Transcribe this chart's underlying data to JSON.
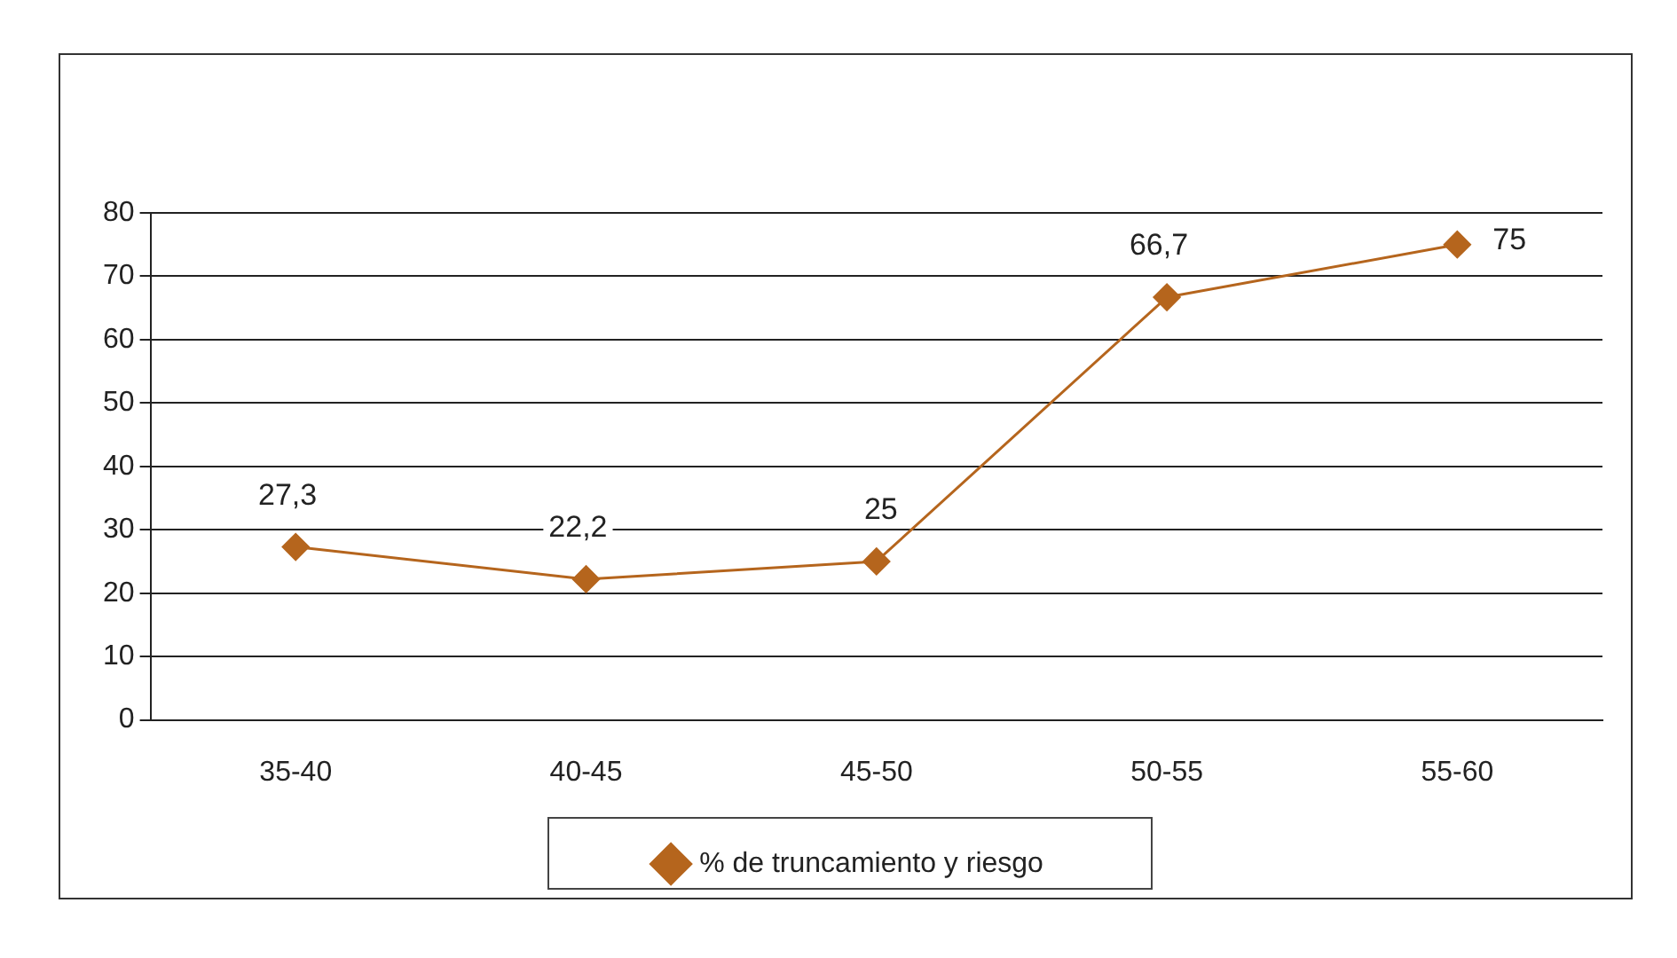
{
  "chart_data": {
    "type": "line",
    "categories": [
      "35-40",
      "40-45",
      "45-50",
      "50-55",
      "55-60"
    ],
    "series": [
      {
        "name": "% de truncamiento y riesgo",
        "color": "#b5651d",
        "values": [
          27.3,
          22.2,
          25,
          66.7,
          75
        ],
        "value_labels": [
          "27,3",
          "22,2",
          "25",
          "66,7",
          "75"
        ]
      }
    ],
    "ylim": [
      0,
      80
    ],
    "yticks": [
      0,
      10,
      20,
      30,
      40,
      50,
      60,
      70,
      80
    ],
    "grid": "y",
    "legend": "bottom",
    "marker": "diamond",
    "line_style": "solid"
  }
}
